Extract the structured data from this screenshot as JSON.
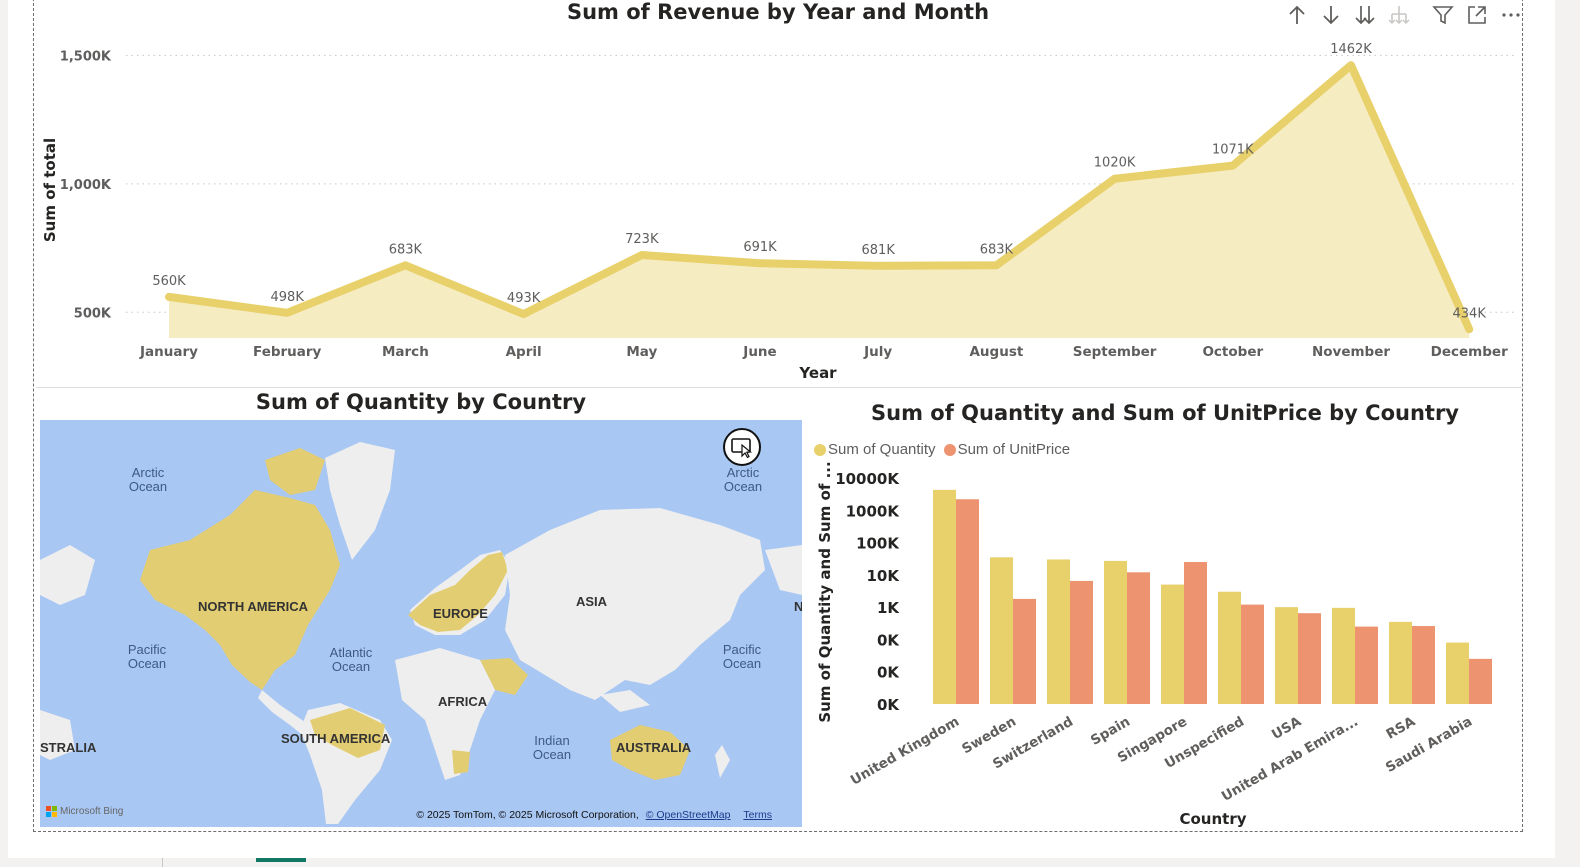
{
  "toolbar": {
    "icons": [
      "sort-ascending-icon",
      "sort-descending-icon",
      "expand-all-down-icon",
      "drill-down-icon",
      "filter-icon",
      "focus-mode-icon",
      "more-options-icon"
    ]
  },
  "colors": {
    "line": "#e8d06a",
    "area": "#f6ecc1",
    "bar_quantity": "#e8d06a",
    "bar_unitprice": "#ee9370",
    "map_water": "#a9c7f3",
    "map_land": "#eeeeee",
    "map_highlight": "#e3cd72"
  },
  "line_chart": {
    "title": "Sum of Revenue by Year and Month",
    "chart_data": {
      "type": "area",
      "title": "Sum of Revenue by Year and Month",
      "xlabel": "Year",
      "ylabel": "Sum of total",
      "categories": [
        "January",
        "February",
        "March",
        "April",
        "May",
        "June",
        "July",
        "August",
        "September",
        "October",
        "November",
        "December"
      ],
      "values": [
        560,
        498,
        683,
        493,
        723,
        691,
        681,
        683,
        1020,
        1071,
        1462,
        434
      ],
      "data_labels": [
        "560K",
        "498K",
        "683K",
        "493K",
        "723K",
        "691K",
        "681K",
        "683K",
        "1020K",
        "1071K",
        "1462K",
        "434K"
      ],
      "ylim": [
        400,
        1560
      ],
      "y_ticks": [
        500,
        1000,
        1500
      ],
      "y_tick_labels": [
        "500K",
        "1,000K",
        "1,500K"
      ],
      "grid": true
    }
  },
  "map": {
    "title": "Sum of Quantity by Country",
    "labels": {
      "arctic_left": "Arctic\nOcean",
      "arctic_right": "Arctic\nOcean",
      "north_america": "NORTH AMERICA",
      "europe": "EUROPE",
      "asia": "ASIA",
      "africa": "AFRICA",
      "south_america": "SOUTH AMERICA",
      "australia": "AUSTRALIA",
      "australia_left": "STRALIA",
      "pacific_left": "Pacific\nOcean",
      "pacific_right": "Pacific\nOcean",
      "atlantic": "Atlantic\nOcean",
      "indian": "Indian\nOcean",
      "edge_n": "N"
    },
    "attribution": "© 2025 TomTom, © 2025 Microsoft Corporation,",
    "osm_link": "© OpenStreetMap",
    "terms_link": "Terms",
    "logo": "Microsoft Bing"
  },
  "bar_chart": {
    "title": "Sum of Quantity and Sum of UnitPrice by Country",
    "legend": [
      "Sum of Quantity",
      "Sum of UnitPrice"
    ],
    "chart_data": {
      "type": "bar",
      "title": "Sum of Quantity and Sum of UnitPrice by Country",
      "xlabel": "Country",
      "ylabel": "Sum of Quantity and Sum of ...",
      "y_scale": "log",
      "y_tick_labels": [
        "10000K",
        "1000K",
        "100K",
        "10K",
        "1K",
        "0K",
        "0K",
        "0K"
      ],
      "y_tick_values": [
        10000000,
        1000000,
        100000,
        10000,
        1000,
        100,
        10,
        1
      ],
      "categories": [
        "United Kingdom",
        "Sweden",
        "Switzerland",
        "Spain",
        "Singapore",
        "Unspecified",
        "USA",
        "United Arab Emira...",
        "RSA",
        "Saudi Arabia"
      ],
      "series": [
        {
          "name": "Sum of Quantity",
          "values": [
            4300000,
            35000,
            30000,
            27000,
            5000,
            3000,
            1000,
            950,
            350,
            80
          ]
        },
        {
          "name": "Sum of UnitPrice",
          "values": [
            2200000,
            1800,
            6500,
            12000,
            25000,
            1200,
            650,
            250,
            260,
            25
          ]
        }
      ]
    }
  }
}
